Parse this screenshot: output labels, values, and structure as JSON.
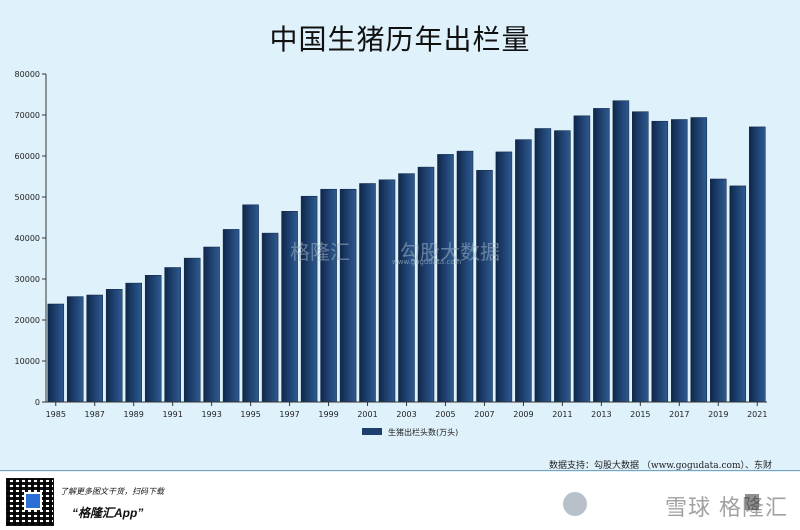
{
  "chart_data": {
    "type": "bar",
    "title": "中国生猪历年出栏量",
    "categories": [
      "1985",
      "1986",
      "1987",
      "1988",
      "1989",
      "1990",
      "1991",
      "1992",
      "1993",
      "1994",
      "1995",
      "1996",
      "1997",
      "1998",
      "1999",
      "2000",
      "2001",
      "2002",
      "2003",
      "2004",
      "2005",
      "2006",
      "2007",
      "2008",
      "2009",
      "2010",
      "2011",
      "2012",
      "2013",
      "2014",
      "2015",
      "2016",
      "2017",
      "2018",
      "2019",
      "2020",
      "2021"
    ],
    "x_tick_labels": [
      "1985",
      "1987",
      "1989",
      "1991",
      "1993",
      "1995",
      "1997",
      "1999",
      "2001",
      "2003",
      "2005",
      "2007",
      "2009",
      "2011",
      "2013",
      "2015",
      "2017",
      "2019",
      "2021"
    ],
    "series": [
      {
        "name": "生猪出栏头数(万头)",
        "values": [
          23900,
          25700,
          26100,
          27500,
          29000,
          30900,
          32800,
          35100,
          37800,
          42100,
          48100,
          41200,
          46500,
          50200,
          51900,
          51900,
          53300,
          54200,
          55700,
          57300,
          60400,
          61200,
          56500,
          61000,
          64000,
          66700,
          66200,
          69800,
          71600,
          73500,
          70800,
          68500,
          68900,
          69400,
          54400,
          52700,
          67100
        ]
      }
    ],
    "ylim": [
      0,
      80000
    ],
    "y_ticks": [
      "0",
      "10000",
      "20000",
      "30000",
      "40000",
      "50000",
      "60000",
      "70000",
      "80000"
    ],
    "legend_position": "bottom",
    "bar_color": "#1d3f6e",
    "background": "#dff1fb"
  },
  "source": "数据支持：勾股大数据 （www.gogudata.com）、东财",
  "footer": {
    "promo_line1": "了解更多图文干货，扫码下载",
    "promo_line2": "“格隆汇App”",
    "brand_watermark": "雪球 格隆汇"
  },
  "watermark": {
    "left": "格隆汇",
    "right": "勾股大数据",
    "url": "www.gogudata.com"
  }
}
